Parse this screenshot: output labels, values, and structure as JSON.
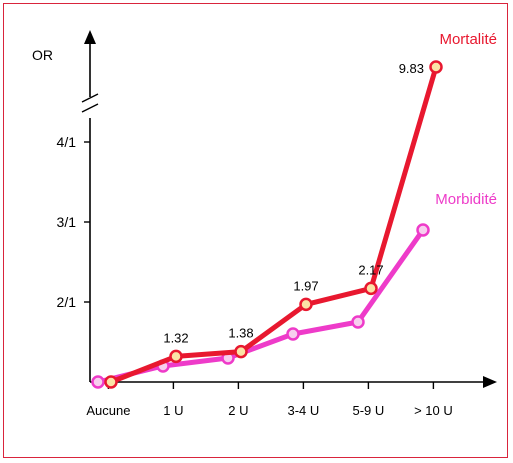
{
  "chart_data": {
    "type": "line",
    "ylabel": "OR",
    "categories": [
      "Aucune",
      "1 U",
      "2 U",
      "3-4 U",
      "5-9 U",
      "> 10 U"
    ],
    "y_tick_labels": [
      "2/1",
      "3/1",
      "4/1"
    ],
    "y_tick_values": [
      2,
      3,
      4
    ],
    "axis_break": true,
    "series": [
      {
        "name": "Mortalité",
        "color": "#e8182f",
        "marker_fill": "#fbe3a6",
        "x_offset": 0.2,
        "values": [
          1.0,
          1.32,
          1.38,
          1.97,
          2.17,
          9.83
        ],
        "labels": [
          "",
          "1.32",
          "1.38",
          "1.97",
          "2.17",
          "9.83"
        ]
      },
      {
        "name": "Morbidité",
        "color": "#ee3bc9",
        "marker_fill": "#f7cfee",
        "x_offset": 0.0,
        "values": [
          1.0,
          1.2,
          1.3,
          1.6,
          1.75,
          2.9
        ],
        "labels": [
          "",
          "",
          "",
          "",
          "",
          ""
        ]
      }
    ],
    "grid": false,
    "legend": "inline series labels near line ends"
  }
}
